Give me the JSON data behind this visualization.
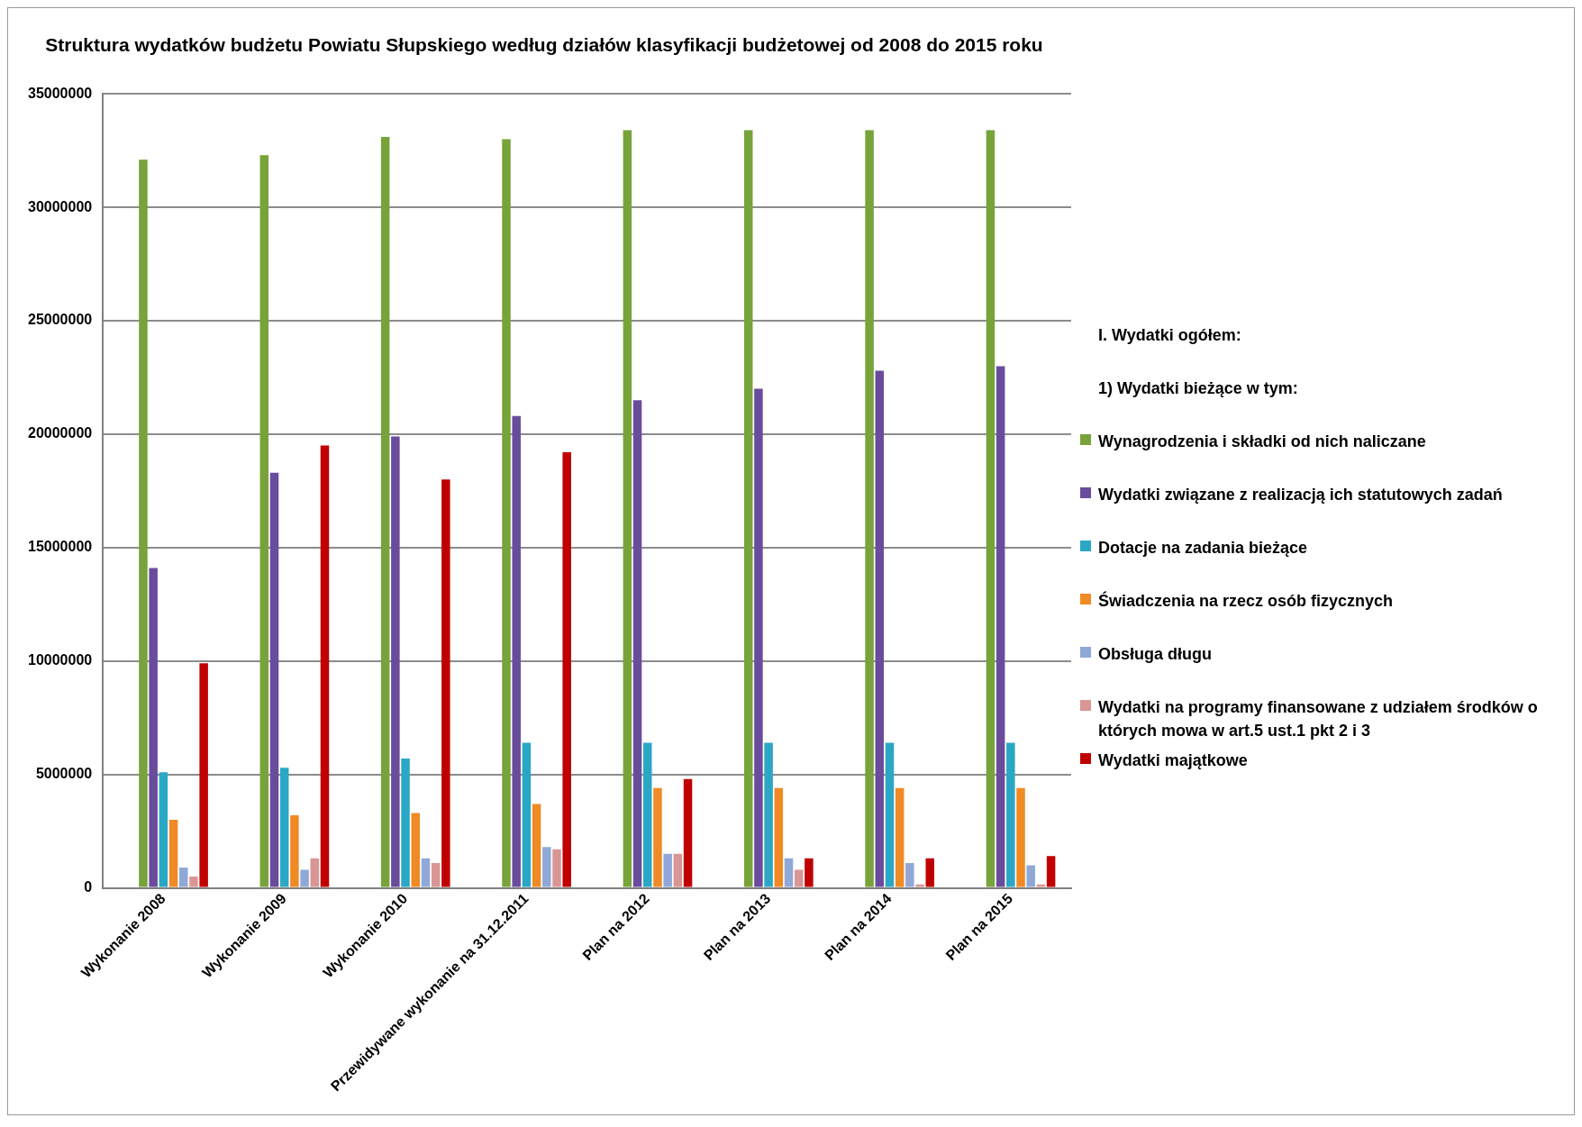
{
  "chart_data": {
    "type": "bar",
    "title": "Struktura wydatków budżetu Powiatu Słupskiego według działów klasyfikacji budżetowej od 2008 do 2015 roku",
    "categories": [
      "Wykonanie 2008",
      "Wykonanie 2009",
      "Wykonanie 2010",
      "Przewidywane wykonanie na 31.12.2011",
      "Plan na 2012",
      "Plan na 2013",
      "Plan na 2014",
      "Plan na 2015"
    ],
    "series": [
      {
        "name": "I. Wydatki ogółem:",
        "values": [
          null,
          null,
          null,
          null,
          null,
          null,
          null,
          null
        ]
      },
      {
        "name": "1) Wydatki bieżące w tym:",
        "values": [
          null,
          null,
          null,
          null,
          null,
          null,
          null,
          null
        ]
      },
      {
        "name": "Wynagrodzenia i składki od nich naliczane",
        "color": "#77a33a",
        "values": [
          32100000,
          32300000,
          33100000,
          33000000,
          33400000,
          33400000,
          33400000,
          33400000
        ]
      },
      {
        "name": "Wydatki związane z realizacją ich statutowych zadań",
        "color": "#6a4c9c",
        "values": [
          14100000,
          18300000,
          19900000,
          20800000,
          21500000,
          22000000,
          22800000,
          23000000
        ]
      },
      {
        "name": "Dotacje na zadania bieżące",
        "color": "#2aa7c5",
        "values": [
          5100000,
          5300000,
          5700000,
          6400000,
          6400000,
          6400000,
          6400000,
          6400000
        ]
      },
      {
        "name": "Świadczenia na rzecz osób fizycznych",
        "color": "#f08a24",
        "values": [
          3000000,
          3200000,
          3300000,
          3700000,
          4400000,
          4400000,
          4400000,
          4400000
        ]
      },
      {
        "name": "Obsługa długu",
        "color": "#8fa8d8",
        "values": [
          900000,
          800000,
          1300000,
          1800000,
          1500000,
          1300000,
          1100000,
          1000000
        ]
      },
      {
        "name": "Wydatki na programy finansowane z udziałem środków o których mowa w art.5 ust.1 pkt 2 i 3",
        "color": "#d99694",
        "values": [
          500000,
          1300000,
          1100000,
          1700000,
          1500000,
          800000,
          150000,
          150000
        ]
      },
      {
        "name": "Wydatki majątkowe",
        "color": "#c00000",
        "values": [
          9900000,
          19500000,
          18000000,
          19200000,
          4800000,
          1300000,
          1300000,
          1400000
        ]
      }
    ],
    "ylim": [
      0,
      35000000
    ],
    "yticks": [
      0,
      5000000,
      10000000,
      15000000,
      20000000,
      25000000,
      30000000,
      35000000
    ],
    "grid": "y",
    "legend": "right"
  }
}
